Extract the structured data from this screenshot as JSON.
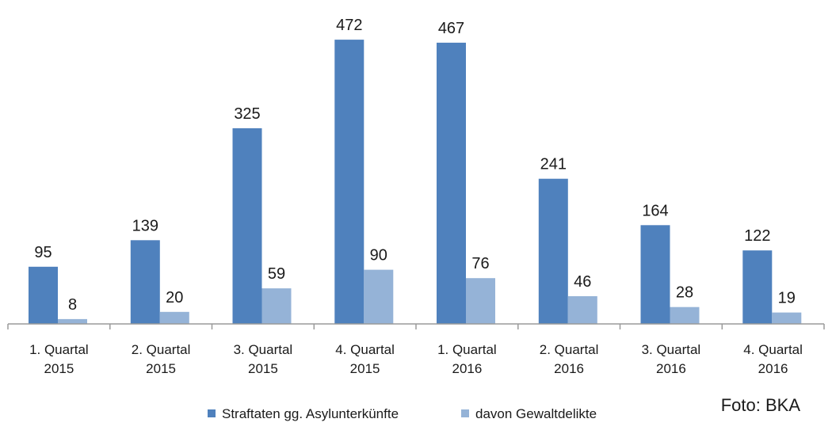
{
  "chart_data": {
    "type": "bar",
    "categories": [
      [
        "1. Quartal",
        "2015"
      ],
      [
        "2. Quartal",
        "2015"
      ],
      [
        "3. Quartal",
        "2015"
      ],
      [
        "4. Quartal",
        "2015"
      ],
      [
        "1. Quartal",
        "2016"
      ],
      [
        "2. Quartal",
        "2016"
      ],
      [
        "3. Quartal",
        "2016"
      ],
      [
        "4. Quartal",
        "2016"
      ]
    ],
    "series": [
      {
        "name": "Straftaten gg. Asylunterkünfte",
        "color": "#4f81bd",
        "values": [
          95,
          139,
          325,
          472,
          467,
          241,
          164,
          122
        ]
      },
      {
        "name": "davon Gewaltdelikte",
        "color": "#95b3d7",
        "values": [
          8,
          20,
          59,
          90,
          76,
          46,
          28,
          19
        ]
      }
    ],
    "ylim": [
      0,
      480
    ],
    "grid": false,
    "legend_position": "bottom",
    "data_labels": true,
    "title": "",
    "xlabel": "",
    "ylabel": ""
  },
  "credit": "Foto: BKA"
}
